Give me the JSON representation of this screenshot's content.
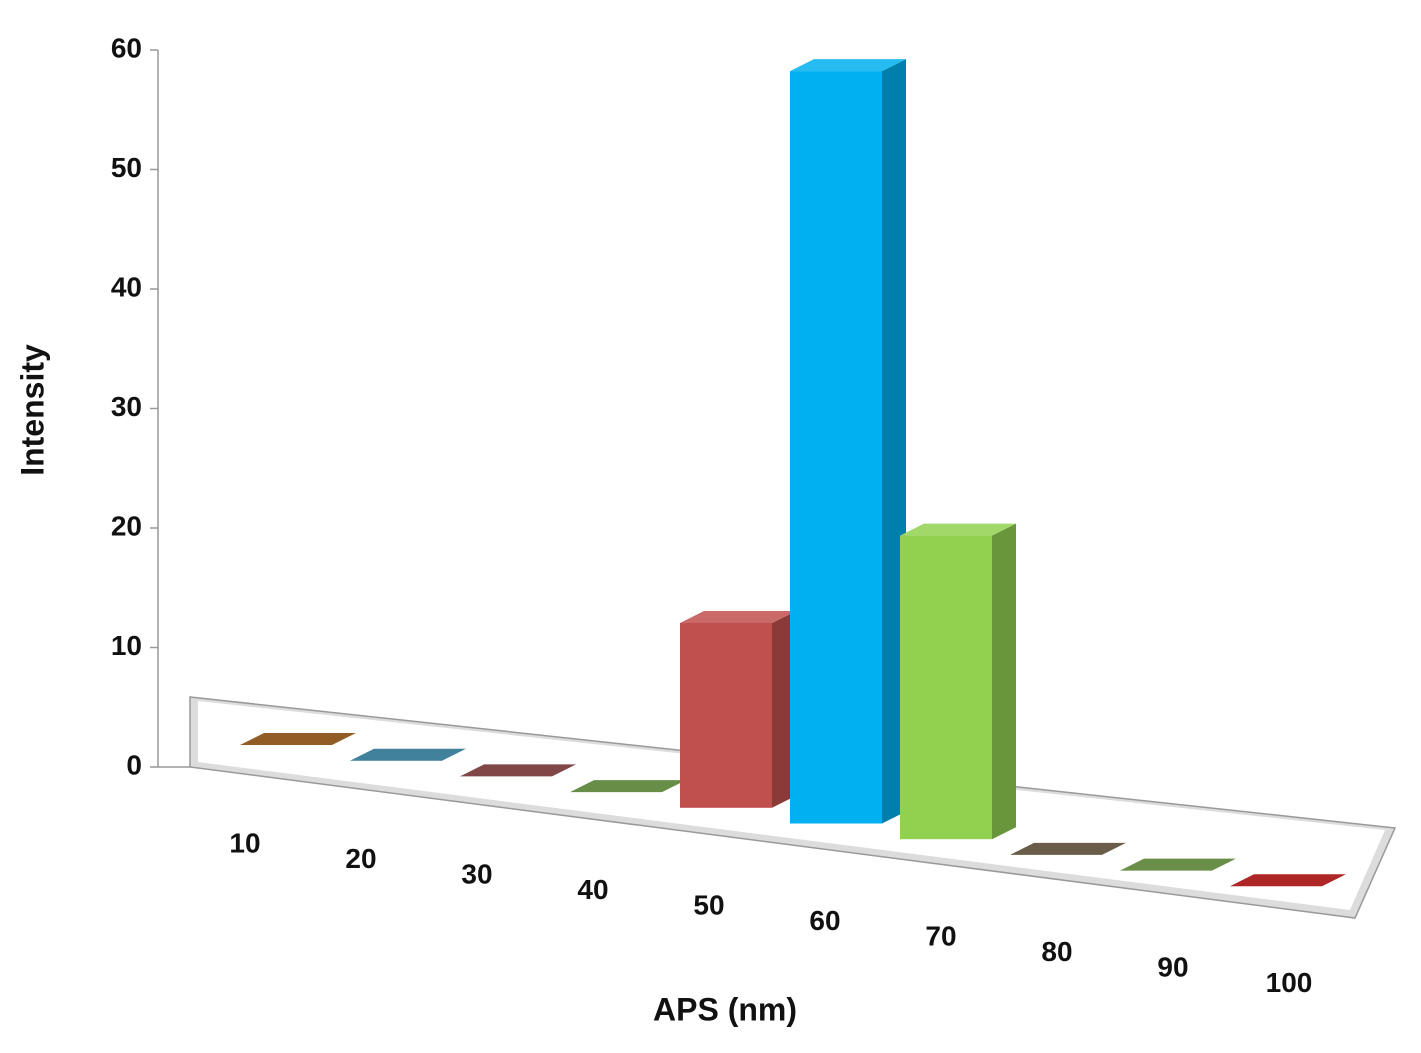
{
  "chart_data": {
    "type": "bar",
    "x_label": "APS (nm)",
    "y_label": "Intensity",
    "categories": [
      "10",
      "20",
      "30",
      "40",
      "50",
      "60",
      "70",
      "80",
      "90",
      "100"
    ],
    "values": [
      0,
      0,
      0,
      0,
      14,
      57,
      23,
      0,
      0,
      0
    ],
    "colors": [
      "#7f3f00",
      "#1f6b8a",
      "#6b2626",
      "#4b7a26",
      "#c0504d",
      "#00b0f0",
      "#92d050",
      "#4f4129",
      "#4f7a28",
      "#a00000"
    ],
    "ylim": [
      0,
      60
    ],
    "yticks": [
      0,
      10,
      20,
      30,
      40,
      50,
      60
    ]
  }
}
